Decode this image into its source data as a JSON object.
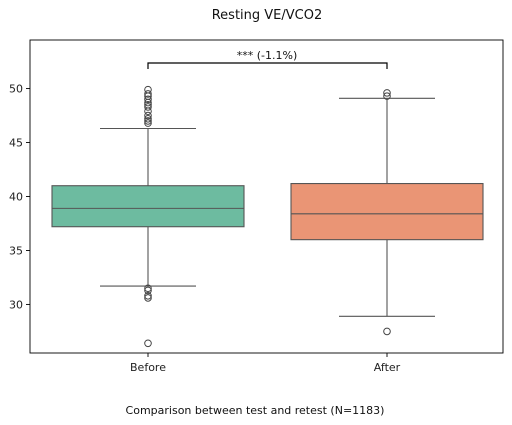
{
  "chart_data": {
    "type": "box",
    "title": "Resting VE/VCO2",
    "caption": "Comparison between test and retest (N=1183)",
    "xlabel": "",
    "ylabel": "",
    "ylim": [
      25.5,
      54.5
    ],
    "yticks": [
      30,
      35,
      40,
      45,
      50
    ],
    "categories": [
      "Before",
      "After"
    ],
    "series": [
      {
        "category": "Before",
        "color": "#6dbba0",
        "q1": 37.2,
        "median": 38.9,
        "q3": 41.0,
        "whisker_low": 31.7,
        "whisker_high": 46.3,
        "outliers": [
          26.4,
          30.6,
          30.8,
          31.3,
          31.5,
          46.8,
          47.0,
          47.2,
          47.5,
          47.9,
          48.3,
          48.5,
          48.7,
          49.0,
          49.3,
          49.5,
          49.9
        ]
      },
      {
        "category": "After",
        "color": "#ea9575",
        "q1": 36.0,
        "median": 38.4,
        "q3": 41.2,
        "whisker_low": 28.9,
        "whisker_high": 49.1,
        "outliers": [
          27.5,
          49.3,
          49.6
        ]
      }
    ],
    "annotation": "*** (-1.1%)",
    "grid": false
  }
}
